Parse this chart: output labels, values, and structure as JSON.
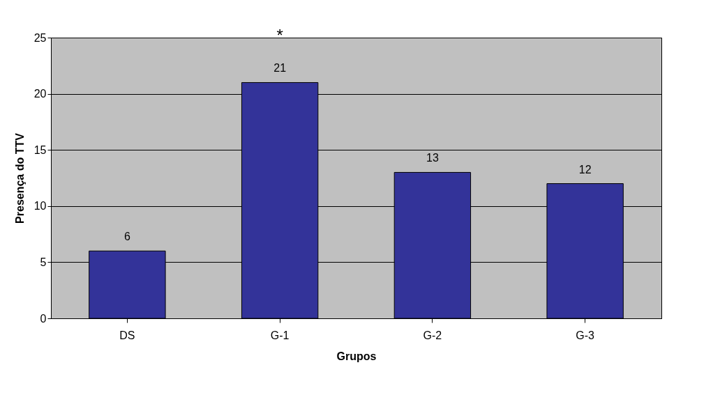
{
  "chart_data": {
    "type": "bar",
    "xlabel": "Grupos",
    "ylabel": "Presença do TTV",
    "categories": [
      "DS",
      "G-1",
      "G-2",
      "G-3"
    ],
    "values": [
      6,
      21,
      13,
      12
    ],
    "color": "#333399",
    "ylim": [
      0,
      25
    ],
    "yticks": [
      0,
      5,
      10,
      15,
      20,
      25
    ],
    "grid": "y",
    "data_labels": true,
    "annotations": [
      "*"
    ]
  }
}
